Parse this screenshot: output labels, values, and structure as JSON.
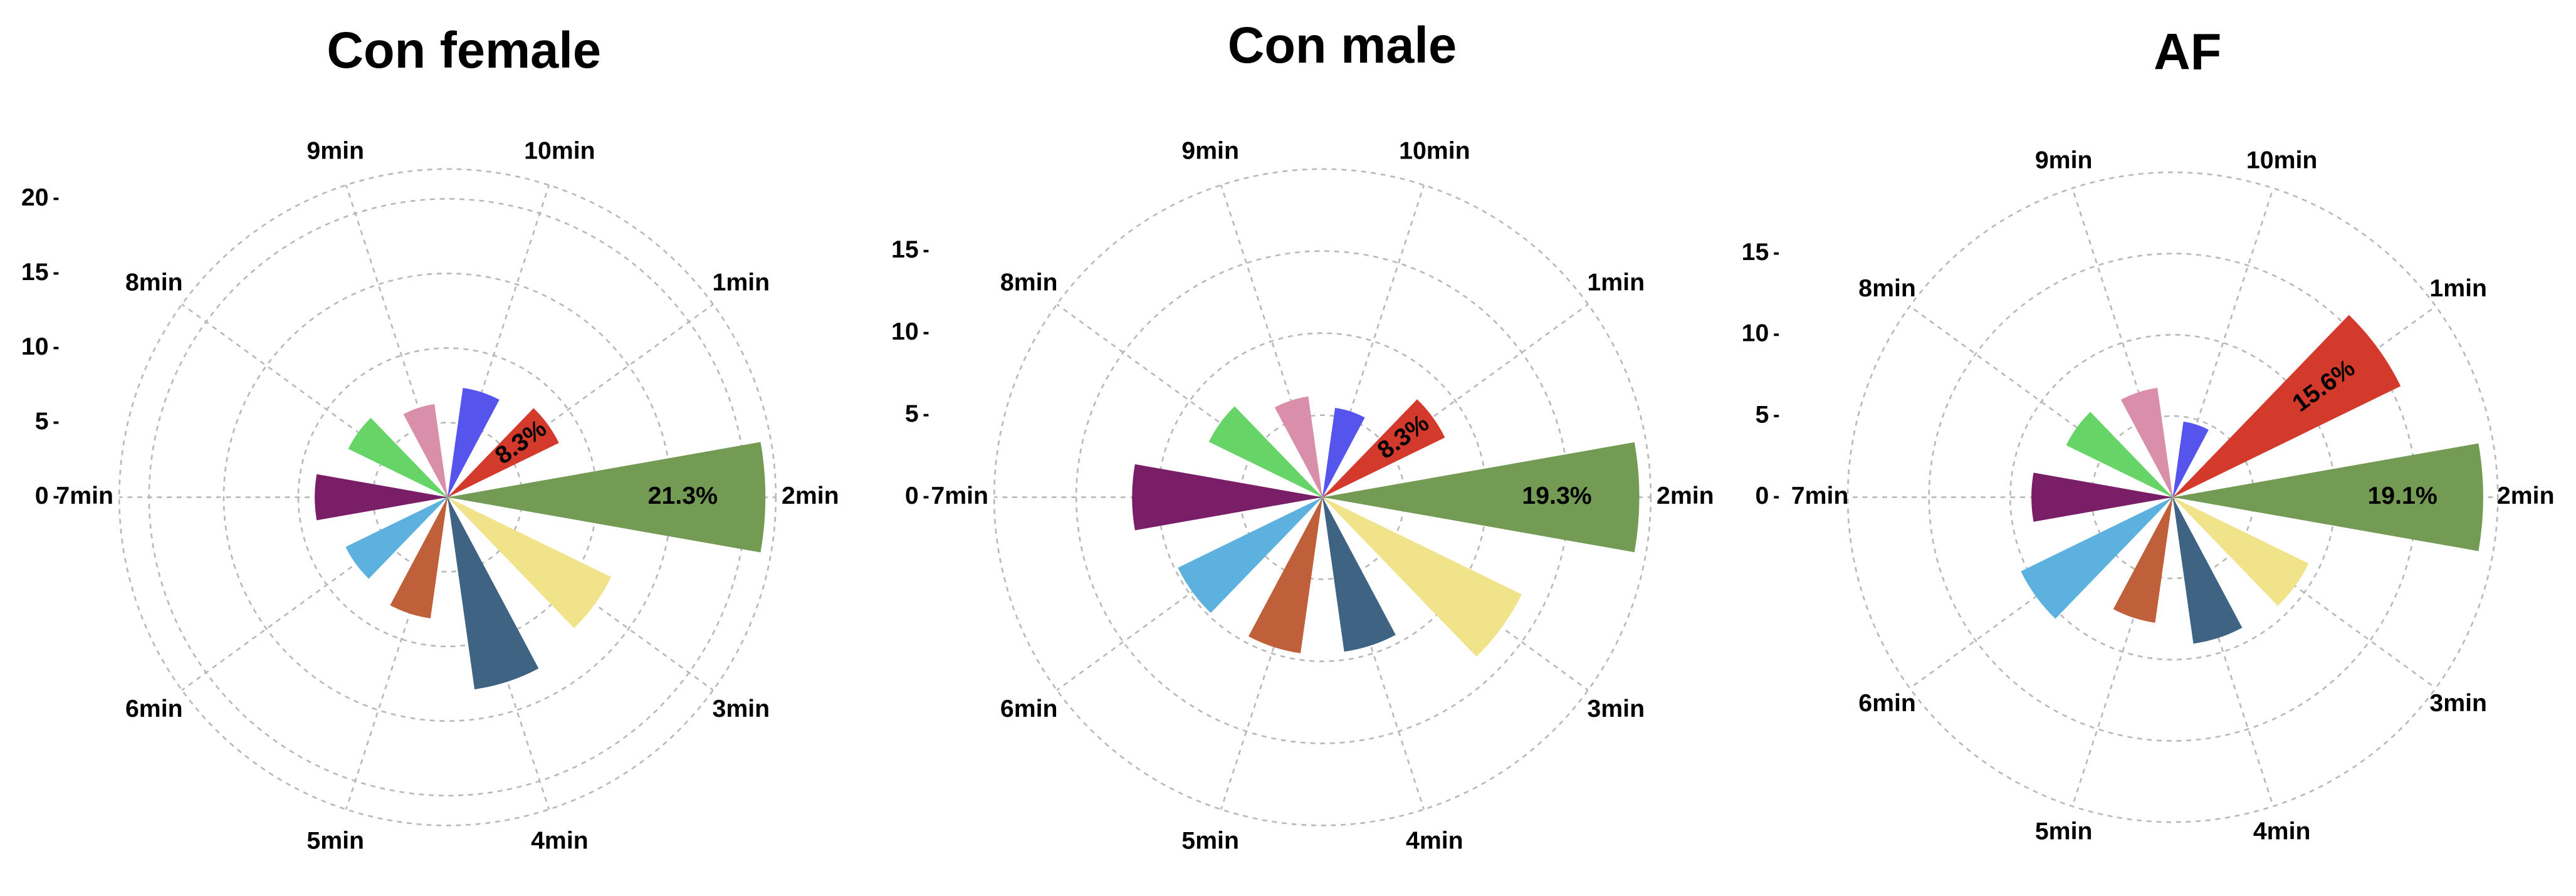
{
  "chart_data": [
    {
      "type": "rose",
      "title": "Con female",
      "categories": [
        "1min",
        "2min",
        "3min",
        "4min",
        "5min",
        "6min",
        "7min",
        "8min",
        "9min",
        "10min"
      ],
      "values": [
        8.3,
        21.3,
        12.2,
        13.0,
        8.2,
        7.6,
        8.9,
        7.4,
        6.3,
        7.4
      ],
      "value_labels": [
        "8.3%",
        "21.3%",
        null,
        null,
        null,
        null,
        null,
        null,
        null,
        null
      ],
      "colors": [
        "#d33a2c",
        "#739b54",
        "#f1e38a",
        "#3f6483",
        "#c0603a",
        "#5cb1de",
        "#7a1f67",
        "#66d466",
        "#d98fa9",
        "#5555ee"
      ],
      "ylim": [
        0,
        22
      ],
      "yticks": [
        0,
        5,
        10,
        15,
        20
      ],
      "grid": true
    },
    {
      "type": "rose",
      "title": "Con male",
      "categories": [
        "1min",
        "2min",
        "3min",
        "4min",
        "5min",
        "6min",
        "7min",
        "8min",
        "9min",
        "10min"
      ],
      "values": [
        8.3,
        19.3,
        13.5,
        9.5,
        9.6,
        9.8,
        11.6,
        7.7,
        6.2,
        5.5
      ],
      "value_labels": [
        "8.3%",
        "19.3%",
        null,
        null,
        null,
        null,
        null,
        null,
        null,
        null
      ],
      "colors": [
        "#d33a2c",
        "#739b54",
        "#f1e38a",
        "#3f6483",
        "#c0603a",
        "#5cb1de",
        "#7a1f67",
        "#66d466",
        "#d98fa9",
        "#5555ee"
      ],
      "ylim": [
        0,
        20
      ],
      "yticks": [
        0,
        5,
        10,
        15
      ],
      "grid": true
    },
    {
      "type": "rose",
      "title": "AF",
      "categories": [
        "1min",
        "2min",
        "3min",
        "4min",
        "5min",
        "6min",
        "7min",
        "8min",
        "9min",
        "10min"
      ],
      "values": [
        15.6,
        19.1,
        9.3,
        9.1,
        7.8,
        10.4,
        8.7,
        7.3,
        6.8,
        4.7
      ],
      "value_labels": [
        "15.6%",
        "19.1%",
        null,
        null,
        null,
        null,
        null,
        null,
        null,
        null
      ],
      "colors": [
        "#d33a2c",
        "#739b54",
        "#f1e38a",
        "#3f6483",
        "#c0603a",
        "#5cb1de",
        "#7a1f67",
        "#66d466",
        "#d98fa9",
        "#5555ee"
      ],
      "ylim": [
        0,
        20
      ],
      "yticks": [
        0,
        5,
        10,
        15
      ],
      "grid": true
    }
  ]
}
